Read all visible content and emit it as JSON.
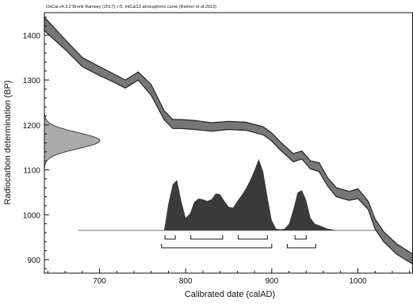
{
  "chart_data": {
    "type": "area",
    "header": "OxCal v4.3.2 Bronk Ramsey (2017); r:5; IntCal13 atmospheric curve (Reimer et al 2013)",
    "xlabel": "Calibrated date (calAD)",
    "ylabel": "Radiocarbon determination (BP)",
    "xlim": [
      636,
      1064
    ],
    "ylim": [
      870,
      1450
    ],
    "x_ticks": [
      700,
      800,
      900,
      1000
    ],
    "y_ticks": [
      900,
      1000,
      1100,
      1200,
      1300,
      1400
    ],
    "grid": false,
    "colors": {
      "band": "#777777",
      "band_edge": "#222222",
      "posterior": "#3a3a3a",
      "prior_density": "#aaaaaa",
      "axis": "#111111"
    },
    "calibration_band": {
      "name": "IntCal13",
      "x": [
        636,
        660,
        680,
        700,
        720,
        730,
        745,
        760,
        775,
        785,
        795,
        810,
        830,
        850,
        870,
        890,
        900,
        910,
        925,
        935,
        945,
        955,
        965,
        975,
        990,
        1000,
        1012,
        1020,
        1030,
        1045,
        1064
      ],
      "upper": [
        1440,
        1390,
        1350,
        1330,
        1310,
        1300,
        1318,
        1290,
        1232,
        1212,
        1212,
        1210,
        1205,
        1208,
        1206,
        1196,
        1182,
        1162,
        1136,
        1142,
        1120,
        1116,
        1082,
        1060,
        1052,
        1058,
        1030,
        990,
        962,
        935,
        912
      ],
      "lower": [
        1410,
        1368,
        1330,
        1310,
        1292,
        1282,
        1300,
        1266,
        1212,
        1192,
        1192,
        1190,
        1186,
        1190,
        1188,
        1178,
        1164,
        1144,
        1118,
        1124,
        1102,
        1096,
        1064,
        1040,
        1032,
        1036,
        1012,
        968,
        940,
        912,
        890
      ]
    },
    "radiocarbon_date": {
      "mean_bp": 1165,
      "sigma_bp": 18
    },
    "posterior_distribution": {
      "x": [
        675,
        775,
        780,
        785,
        790,
        795,
        800,
        805,
        810,
        815,
        820,
        825,
        830,
        835,
        840,
        845,
        850,
        855,
        860,
        865,
        870,
        875,
        880,
        885,
        890,
        895,
        900,
        905,
        910,
        915,
        920,
        925,
        930,
        935,
        940,
        945,
        950,
        955,
        960,
        965,
        970,
        975,
        1025
      ],
      "density": [
        0,
        0,
        0.32,
        0.55,
        0.6,
        0.35,
        0.15,
        0.2,
        0.34,
        0.38,
        0.37,
        0.35,
        0.37,
        0.44,
        0.43,
        0.35,
        0.28,
        0.27,
        0.35,
        0.42,
        0.5,
        0.6,
        0.72,
        0.85,
        0.7,
        0.4,
        0.12,
        0.02,
        0.01,
        0.02,
        0.08,
        0.25,
        0.45,
        0.48,
        0.36,
        0.15,
        0.08,
        0.06,
        0.04,
        0.02,
        0.01,
        0,
        0
      ]
    },
    "hpd_ranges": {
      "sigma1": [
        [
          776,
          788
        ],
        [
          806,
          843
        ],
        [
          861,
          895
        ],
        [
          927,
          940
        ]
      ],
      "sigma2": [
        [
          772,
          900
        ],
        [
          918,
          951
        ]
      ]
    }
  }
}
